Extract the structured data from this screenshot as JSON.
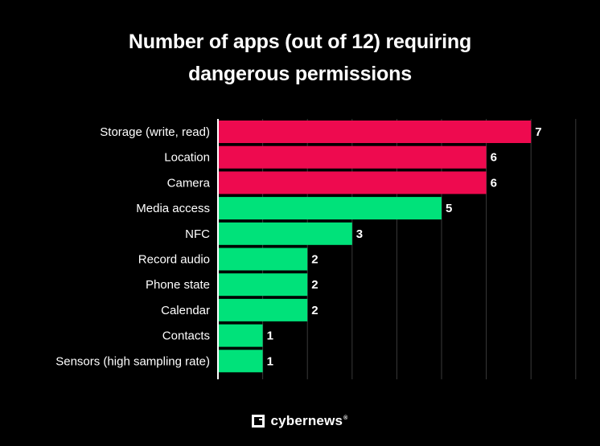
{
  "chart_data": {
    "type": "bar",
    "orientation": "horizontal",
    "title_lines": [
      "Number of apps (out of 12) requiring",
      "dangerous permissions"
    ],
    "categories": [
      "Storage (write, read)",
      "Location",
      "Camera",
      "Media access",
      "NFC",
      "Record audio",
      "Phone state",
      "Calendar",
      "Contacts",
      "Sensors (high sampling rate)"
    ],
    "values": [
      7,
      6,
      6,
      5,
      3,
      2,
      2,
      2,
      1,
      1
    ],
    "colors": [
      "#ee0a4f",
      "#ee0a4f",
      "#ee0a4f",
      "#00e27a",
      "#00e27a",
      "#00e27a",
      "#00e27a",
      "#00e27a",
      "#00e27a",
      "#00e27a"
    ],
    "xlim": [
      0,
      8
    ],
    "grid": true,
    "xlabel": "",
    "ylabel": ""
  },
  "brand": {
    "name": "cybernews",
    "reg_mark": "®",
    "logo_icon": "cybernews-logo-icon"
  },
  "theme": {
    "background": "#000000",
    "text": "#ffffff",
    "grid": "#3a3a3a",
    "axis": "#ffffff"
  }
}
